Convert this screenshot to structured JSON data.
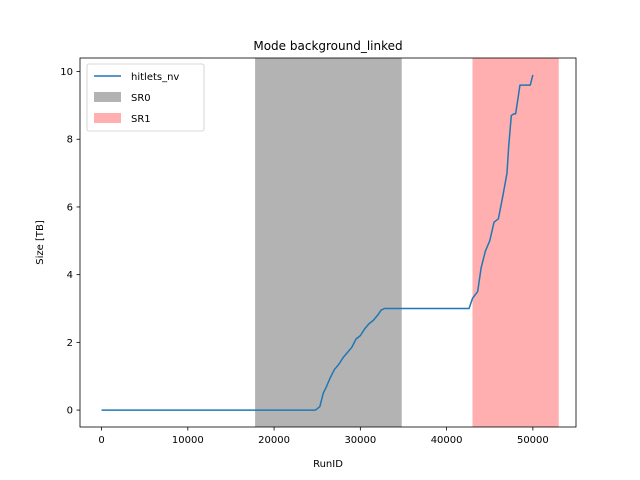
{
  "chart_data": {
    "type": "line",
    "title": "Mode background_linked",
    "xlabel": "RunID",
    "ylabel": "Size [TB]",
    "xlim": [
      -2500,
      55000
    ],
    "ylim": [
      -0.5,
      10.4
    ],
    "xticks": [
      0,
      10000,
      20000,
      30000,
      40000,
      50000
    ],
    "yticks": [
      0,
      2,
      4,
      6,
      8,
      10
    ],
    "xtick_labels": [
      "0",
      "10000",
      "20000",
      "30000",
      "40000",
      "50000"
    ],
    "ytick_labels": [
      "0",
      "2",
      "4",
      "6",
      "8",
      "10"
    ],
    "grid": false,
    "legend_position": "top-left",
    "series": [
      {
        "name": "hitlets_nv",
        "color": "#1f77b4",
        "x": [
          0,
          5000,
          10000,
          15000,
          20000,
          24800,
          25300,
          25700,
          26000,
          26500,
          27000,
          27500,
          28000,
          28500,
          29000,
          29500,
          30000,
          30500,
          31000,
          31500,
          32000,
          32400,
          32800,
          33000,
          35000,
          40000,
          42600,
          43000,
          43600,
          44000,
          44500,
          45000,
          45500,
          46000,
          46500,
          47000,
          47200,
          47500,
          47800,
          48000,
          48300,
          48500,
          49000,
          49700,
          50000
        ],
        "y": [
          0,
          0,
          0,
          0,
          0,
          0,
          0.1,
          0.5,
          0.65,
          0.95,
          1.2,
          1.35,
          1.55,
          1.7,
          1.85,
          2.1,
          2.2,
          2.4,
          2.55,
          2.65,
          2.8,
          2.95,
          3.0,
          3.0,
          3.0,
          3.0,
          3.0,
          3.3,
          3.5,
          4.2,
          4.7,
          5.0,
          5.55,
          5.65,
          6.3,
          7.0,
          7.8,
          8.7,
          8.75,
          8.75,
          9.25,
          9.6,
          9.6,
          9.6,
          9.9
        ]
      }
    ],
    "spans": [
      {
        "name": "SR0",
        "x_start": 17800,
        "x_end": 34800,
        "color": "#808080",
        "opacity": 0.6
      },
      {
        "name": "SR1",
        "x_start": 43000,
        "x_end": 53000,
        "color": "#ff6e6e",
        "opacity": 0.55
      }
    ]
  }
}
